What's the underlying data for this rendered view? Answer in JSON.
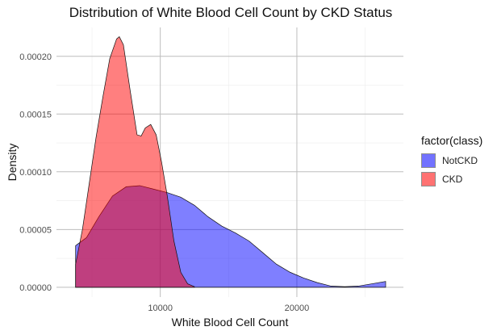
{
  "chart_data": {
    "type": "area",
    "title": "Distribution of White Blood Cell Count by CKD Status",
    "xlabel": "White Blood Cell Count",
    "ylabel": "Density",
    "xlim": [
      2400,
      27800
    ],
    "ylim": [
      -8.5e-06,
      0.000225
    ],
    "x_ticks": [
      10000,
      20000
    ],
    "x_tick_labels": [
      "10000",
      "20000"
    ],
    "y_ticks": [
      0,
      5e-05,
      0.0001,
      0.00015,
      0.0002
    ],
    "y_tick_labels": [
      "0.00000",
      "0.00005",
      "0.00010",
      "0.00015",
      "0.00020"
    ],
    "grid": true,
    "legend": {
      "title": "factor(class)",
      "position": "right"
    },
    "series": [
      {
        "name": "NotCKD",
        "color": "#0000FF",
        "opacity": 0.5,
        "x": [
          3800,
          4600,
          5500,
          6500,
          7500,
          8500,
          9500,
          10500,
          11500,
          12500,
          13500,
          14500,
          15500,
          16500,
          17500,
          18500,
          19500,
          20500,
          21500,
          22500,
          23500,
          24500,
          25500,
          26500
        ],
        "y": [
          3.6e-05,
          4.3e-05,
          6.1e-05,
          7.9e-05,
          8.7e-05,
          8.8e-05,
          8.5e-05,
          8.2e-05,
          7.8e-05,
          7.1e-05,
          6.1e-05,
          5.3e-05,
          4.7e-05,
          4e-05,
          3e-05,
          2e-05,
          1.3e-05,
          8e-06,
          4e-06,
          1e-06,
          5e-07,
          1e-06,
          3e-06,
          5e-06
        ]
      },
      {
        "name": "CKD",
        "color": "#FF0000",
        "opacity": 0.5,
        "x": [
          3800,
          4300,
          4800,
          5300,
          5800,
          6300,
          6800,
          7000,
          7300,
          7800,
          8300,
          8600,
          8900,
          9300,
          9700,
          10100,
          10500,
          11000,
          11500,
          12000,
          12500
        ],
        "y": [
          2e-05,
          5e-05,
          9e-05,
          0.00013,
          0.000165,
          0.000198,
          0.000215,
          0.000217,
          0.00021,
          0.00017,
          0.000132,
          0.000131,
          0.000138,
          0.000141,
          0.000132,
          0.000108,
          8e-05,
          4e-05,
          1.3e-05,
          3e-06,
          5e-07
        ]
      }
    ]
  }
}
